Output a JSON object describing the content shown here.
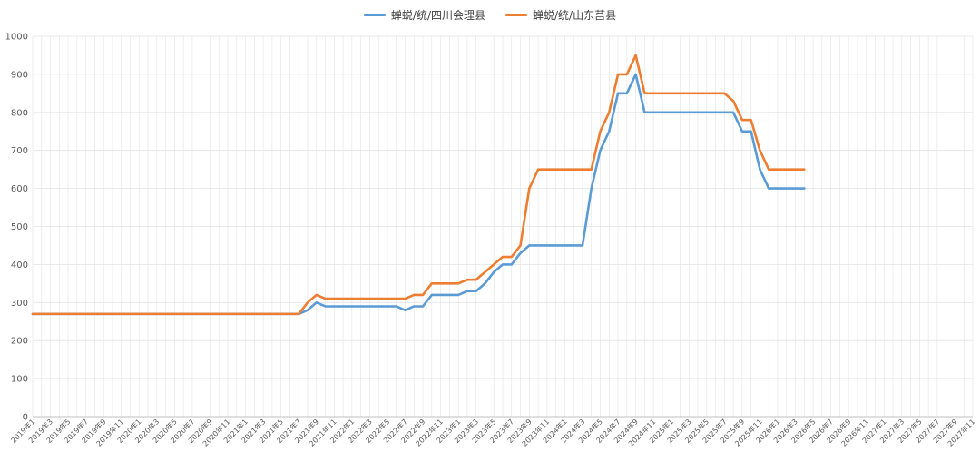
{
  "chart_data": {
    "type": "line",
    "title": "",
    "xlabel": "",
    "ylabel": "",
    "ylim": [
      0,
      1000
    ],
    "y_ticks": [
      0,
      100,
      200,
      300,
      400,
      500,
      600,
      700,
      800,
      900,
      1000
    ],
    "grid": true,
    "legend_position": "top",
    "x_tick_labels": [
      "2019年1",
      "2019年3",
      "2019年5",
      "2019年7",
      "2019年9",
      "2019年11",
      "2020年1",
      "2020年3",
      "2020年5",
      "2020年7",
      "2020年9",
      "2020年11",
      "2021年1",
      "2021年3",
      "2021年5",
      "2021年7",
      "2021年9",
      "2021年11",
      "2022年1",
      "2022年3",
      "2022年5",
      "2022年7",
      "2022年9",
      "2022年11",
      "2023年1",
      "2023年3",
      "2023年5",
      "2023年7",
      "2023年9",
      "2023年11",
      "2024年1",
      "2024年3",
      "2024年5",
      "2024年7",
      "2024年9",
      "2024年11",
      "2025年1",
      "2025年3",
      "2025年5",
      "2025年7",
      "2025年9",
      "2025年11",
      "2026年1",
      "2026年3",
      "2026年5",
      "2026年7",
      "2026年9",
      "2026年11",
      "2027年1",
      "2027年3",
      "2027年5",
      "2027年7",
      "2027年9",
      "2027年11"
    ],
    "series": [
      {
        "name": "蝉蜕/统/四川会理县",
        "color": "#5b9bd5",
        "values": [
          270,
          270,
          270,
          270,
          270,
          270,
          270,
          270,
          270,
          270,
          270,
          270,
          270,
          270,
          270,
          270,
          270,
          270,
          270,
          270,
          270,
          270,
          270,
          270,
          270,
          270,
          270,
          270,
          270,
          270,
          270,
          280,
          300,
          290,
          290,
          290,
          290,
          290,
          290,
          290,
          290,
          290,
          280,
          290,
          290,
          320,
          320,
          320,
          320,
          330,
          330,
          350,
          380,
          400,
          400,
          430,
          450,
          450,
          450,
          450,
          450,
          450,
          450,
          600,
          700,
          750,
          850,
          850,
          900,
          800,
          800,
          800,
          800,
          800,
          800,
          800,
          800,
          800,
          800,
          800,
          750,
          750,
          650,
          600,
          600,
          600,
          600,
          600
        ]
      },
      {
        "name": "蝉蜕/统/山东莒县",
        "color": "#ed7d31",
        "values": [
          270,
          270,
          270,
          270,
          270,
          270,
          270,
          270,
          270,
          270,
          270,
          270,
          270,
          270,
          270,
          270,
          270,
          270,
          270,
          270,
          270,
          270,
          270,
          270,
          270,
          270,
          270,
          270,
          270,
          270,
          270,
          300,
          320,
          310,
          310,
          310,
          310,
          310,
          310,
          310,
          310,
          310,
          310,
          320,
          320,
          350,
          350,
          350,
          350,
          360,
          360,
          380,
          400,
          420,
          420,
          450,
          600,
          650,
          650,
          650,
          650,
          650,
          650,
          650,
          750,
          800,
          900,
          900,
          950,
          850,
          850,
          850,
          850,
          850,
          850,
          850,
          850,
          850,
          850,
          830,
          780,
          780,
          700,
          650,
          650,
          650,
          650,
          650
        ]
      }
    ]
  }
}
